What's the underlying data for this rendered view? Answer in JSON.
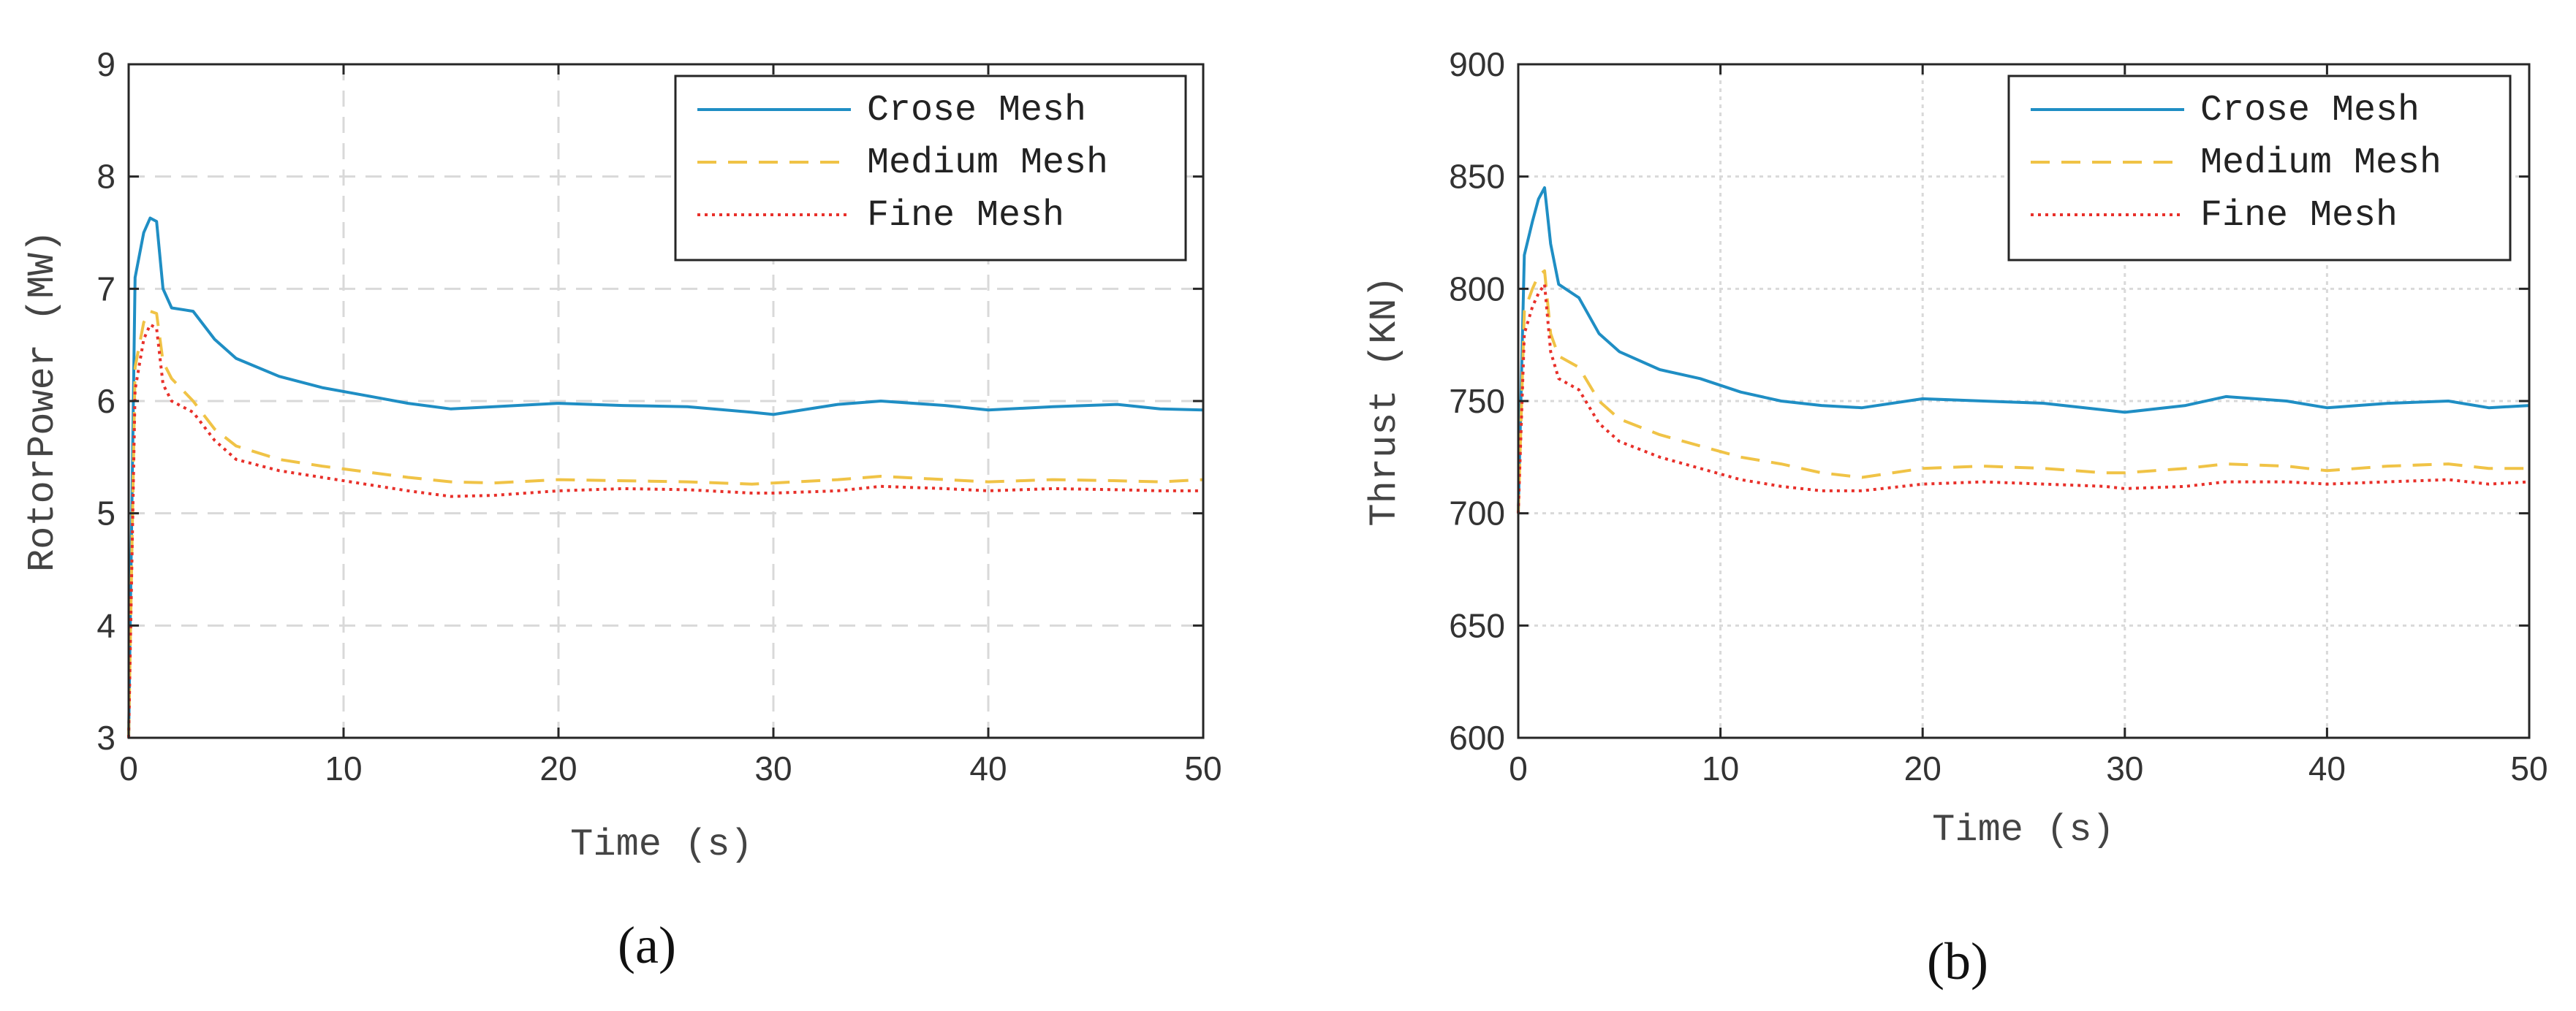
{
  "colors": {
    "coarse": "#1f8ec4",
    "medium": "#f0c346",
    "fine": "#e8302a"
  },
  "chart_data": [
    {
      "type": "line",
      "panel_label": "(a)",
      "xlabel": "Time (s)",
      "ylabel": "RotorPower (MW)",
      "xlim": [
        0,
        50
      ],
      "ylim": [
        3,
        9
      ],
      "xticks": [
        "0",
        "10",
        "20",
        "30",
        "40",
        "50"
      ],
      "yticks": [
        "3",
        "4",
        "5",
        "6",
        "7",
        "8",
        "9"
      ],
      "grid": "dashed",
      "legend_position": "top-right",
      "x": [
        0,
        0.3,
        0.7,
        1.0,
        1.3,
        1.6,
        2.0,
        3.0,
        4.0,
        5.0,
        7.0,
        9.0,
        11.0,
        13.0,
        15.0,
        17.0,
        20.0,
        23.0,
        26.0,
        29.0,
        30.0,
        33.0,
        35.0,
        38.0,
        40.0,
        43.0,
        46.0,
        48.0,
        50.0
      ],
      "series": [
        {
          "name": "Crose Mesh",
          "style": "solid",
          "color_key": "coarse",
          "values": [
            3.0,
            7.1,
            7.5,
            7.63,
            7.6,
            7.0,
            6.83,
            6.8,
            6.55,
            6.38,
            6.22,
            6.12,
            6.05,
            5.98,
            5.93,
            5.95,
            5.98,
            5.96,
            5.95,
            5.9,
            5.88,
            5.97,
            6.0,
            5.96,
            5.92,
            5.95,
            5.97,
            5.93,
            5.92
          ]
        },
        {
          "name": "Medium Mesh",
          "style": "dashed",
          "color_key": "medium",
          "values": [
            3.0,
            6.3,
            6.7,
            6.8,
            6.78,
            6.35,
            6.2,
            6.0,
            5.75,
            5.6,
            5.48,
            5.42,
            5.37,
            5.32,
            5.28,
            5.27,
            5.3,
            5.29,
            5.28,
            5.26,
            5.27,
            5.3,
            5.33,
            5.3,
            5.28,
            5.3,
            5.29,
            5.28,
            5.3
          ]
        },
        {
          "name": "Fine Mesh",
          "style": "dotted",
          "color_key": "fine",
          "values": [
            3.0,
            6.1,
            6.55,
            6.68,
            6.65,
            6.15,
            6.0,
            5.9,
            5.65,
            5.48,
            5.38,
            5.32,
            5.26,
            5.2,
            5.15,
            5.16,
            5.2,
            5.22,
            5.21,
            5.18,
            5.18,
            5.2,
            5.24,
            5.22,
            5.2,
            5.22,
            5.21,
            5.2,
            5.2
          ]
        }
      ]
    },
    {
      "type": "line",
      "panel_label": "(b)",
      "xlabel": "Time (s)",
      "ylabel": "Thrust (KN)",
      "xlim": [
        0,
        50
      ],
      "ylim": [
        600,
        900
      ],
      "xticks": [
        "0",
        "10",
        "20",
        "30",
        "40",
        "50"
      ],
      "yticks": [
        "600",
        "650",
        "700",
        "750",
        "800",
        "850",
        "900"
      ],
      "grid": "dotted",
      "legend_position": "top-right",
      "x": [
        0,
        0.3,
        0.7,
        1.0,
        1.3,
        1.6,
        2.0,
        3.0,
        4.0,
        5.0,
        7.0,
        9.0,
        11.0,
        13.0,
        15.0,
        17.0,
        20.0,
        23.0,
        26.0,
        29.0,
        30.0,
        33.0,
        35.0,
        38.0,
        40.0,
        43.0,
        46.0,
        48.0,
        50.0
      ],
      "series": [
        {
          "name": "Crose Mesh",
          "style": "solid",
          "color_key": "coarse",
          "values": [
            700,
            815,
            830,
            840,
            845,
            820,
            802,
            796,
            780,
            772,
            764,
            760,
            754,
            750,
            748,
            747,
            751,
            750,
            749,
            746,
            745,
            748,
            752,
            750,
            747,
            749,
            750,
            747,
            748
          ]
        },
        {
          "name": "Medium Mesh",
          "style": "dashed",
          "color_key": "medium",
          "values": [
            700,
            790,
            800,
            806,
            808,
            780,
            770,
            765,
            750,
            742,
            735,
            730,
            725,
            722,
            718,
            716,
            720,
            721,
            720,
            718,
            718,
            720,
            722,
            721,
            719,
            721,
            722,
            720,
            720
          ]
        },
        {
          "name": "Fine Mesh",
          "style": "dotted",
          "color_key": "fine",
          "values": [
            700,
            780,
            792,
            798,
            802,
            772,
            760,
            755,
            740,
            732,
            725,
            720,
            715,
            712,
            710,
            710,
            713,
            714,
            713,
            712,
            711,
            712,
            714,
            714,
            713,
            714,
            715,
            713,
            714
          ]
        }
      ]
    }
  ]
}
